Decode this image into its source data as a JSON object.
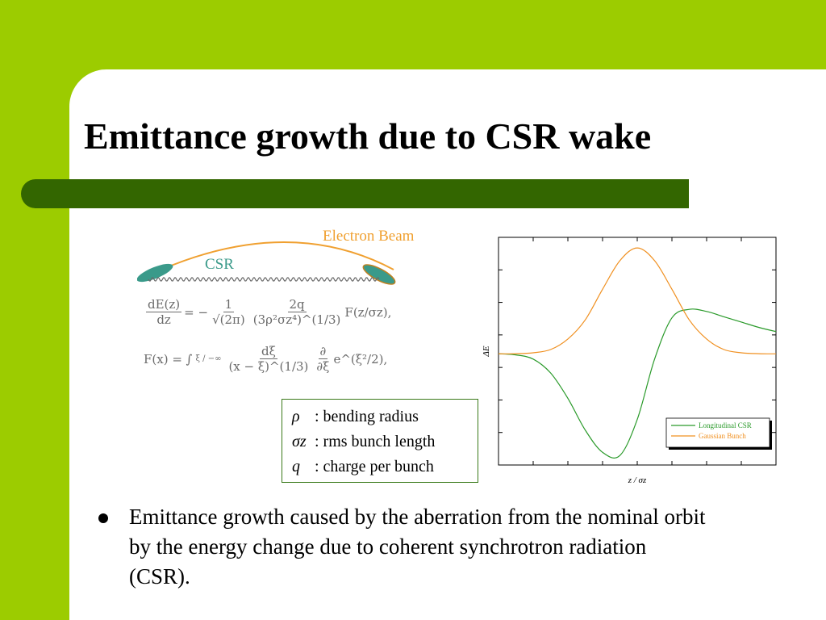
{
  "slide": {
    "title": "Emittance growth due to CSR wake",
    "colors": {
      "background": "#9ccc00",
      "title_bar": "#336600",
      "panel": "#ffffff"
    }
  },
  "diagram": {
    "beam_label": "Electron Beam",
    "csr_label": "CSR",
    "colors": {
      "beam": "#f0a030",
      "csr": "#3a9a8a"
    }
  },
  "formula": {
    "line1": {
      "num1": "dE(z)",
      "den1": "dz",
      "eq": "= −",
      "num2": "1",
      "den2": "√(2π)",
      "num3": "2q",
      "den3": "(3ρ²σz⁴)^(1/3)",
      "tail": "F(z/σz),"
    },
    "line2": {
      "lhs": "F(x) = ∫",
      "limits": "ξ / −∞",
      "num1": "dξ",
      "den1": "(x − ξ)^(1/3)",
      "num2": "∂",
      "den2": "∂ξ",
      "tail": "e^(ξ²/2),"
    }
  },
  "legend": {
    "items": [
      {
        "symbol": "ρ",
        "text": ": bending radius"
      },
      {
        "symbol": "σz",
        "text": ": rms bunch length"
      },
      {
        "symbol": "q",
        "text": ": charge per bunch"
      }
    ]
  },
  "chart_data": {
    "type": "line",
    "xlabel": "z / σz",
    "ylabel": "ΔE",
    "x": [
      -4,
      -3.5,
      -3,
      -2.5,
      -2,
      -1.5,
      -1,
      -0.5,
      0,
      0.5,
      1,
      1.5,
      2,
      2.5,
      3,
      3.5,
      4
    ],
    "series": [
      {
        "name": "Longitudinal CSR",
        "color": "#2a9a2a",
        "values": [
          0,
          -0.01,
          -0.05,
          -0.18,
          -0.42,
          -0.72,
          -0.93,
          -0.96,
          -0.62,
          -0.05,
          0.34,
          0.42,
          0.4,
          0.35,
          0.3,
          0.25,
          0.21
        ]
      },
      {
        "name": "Gaussian Bunch",
        "color": "#f09020",
        "values": [
          0,
          0.001,
          0.01,
          0.04,
          0.14,
          0.32,
          0.61,
          0.88,
          1.0,
          0.88,
          0.61,
          0.32,
          0.14,
          0.04,
          0.01,
          0.001,
          0
        ]
      }
    ],
    "xlim": [
      -4,
      4
    ],
    "ylim": [
      -1.05,
      1.1
    ],
    "grid": false,
    "legend_position": "bottom-right"
  },
  "bullets": [
    "Emittance growth caused by the aberration from the nominal orbit by the energy change due to coherent synchrotron radiation (CSR)."
  ]
}
